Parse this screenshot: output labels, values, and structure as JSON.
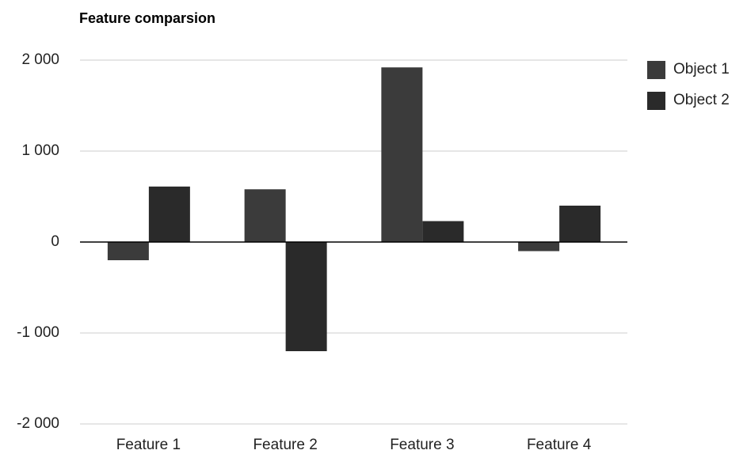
{
  "chart_data": {
    "type": "bar",
    "title": "Feature comparsion",
    "categories": [
      "Feature 1",
      "Feature 2",
      "Feature 3",
      "Feature 4"
    ],
    "series": [
      {
        "name": "Object 1",
        "color": "#3b3b3b",
        "values": [
          -200,
          580,
          1920,
          -100
        ]
      },
      {
        "name": "Object 2",
        "color": "#2a2a2a",
        "values": [
          610,
          -1200,
          230,
          400
        ]
      }
    ],
    "ylim": [
      -2000,
      2000
    ],
    "yticks": [
      {
        "value": -2000,
        "label": "-2 000"
      },
      {
        "value": -1000,
        "label": "-1 000"
      },
      0,
      {
        "value": 1000,
        "label": "1 000"
      },
      {
        "value": 2000,
        "label": "2 000"
      }
    ],
    "grid": true,
    "legend": "right"
  }
}
